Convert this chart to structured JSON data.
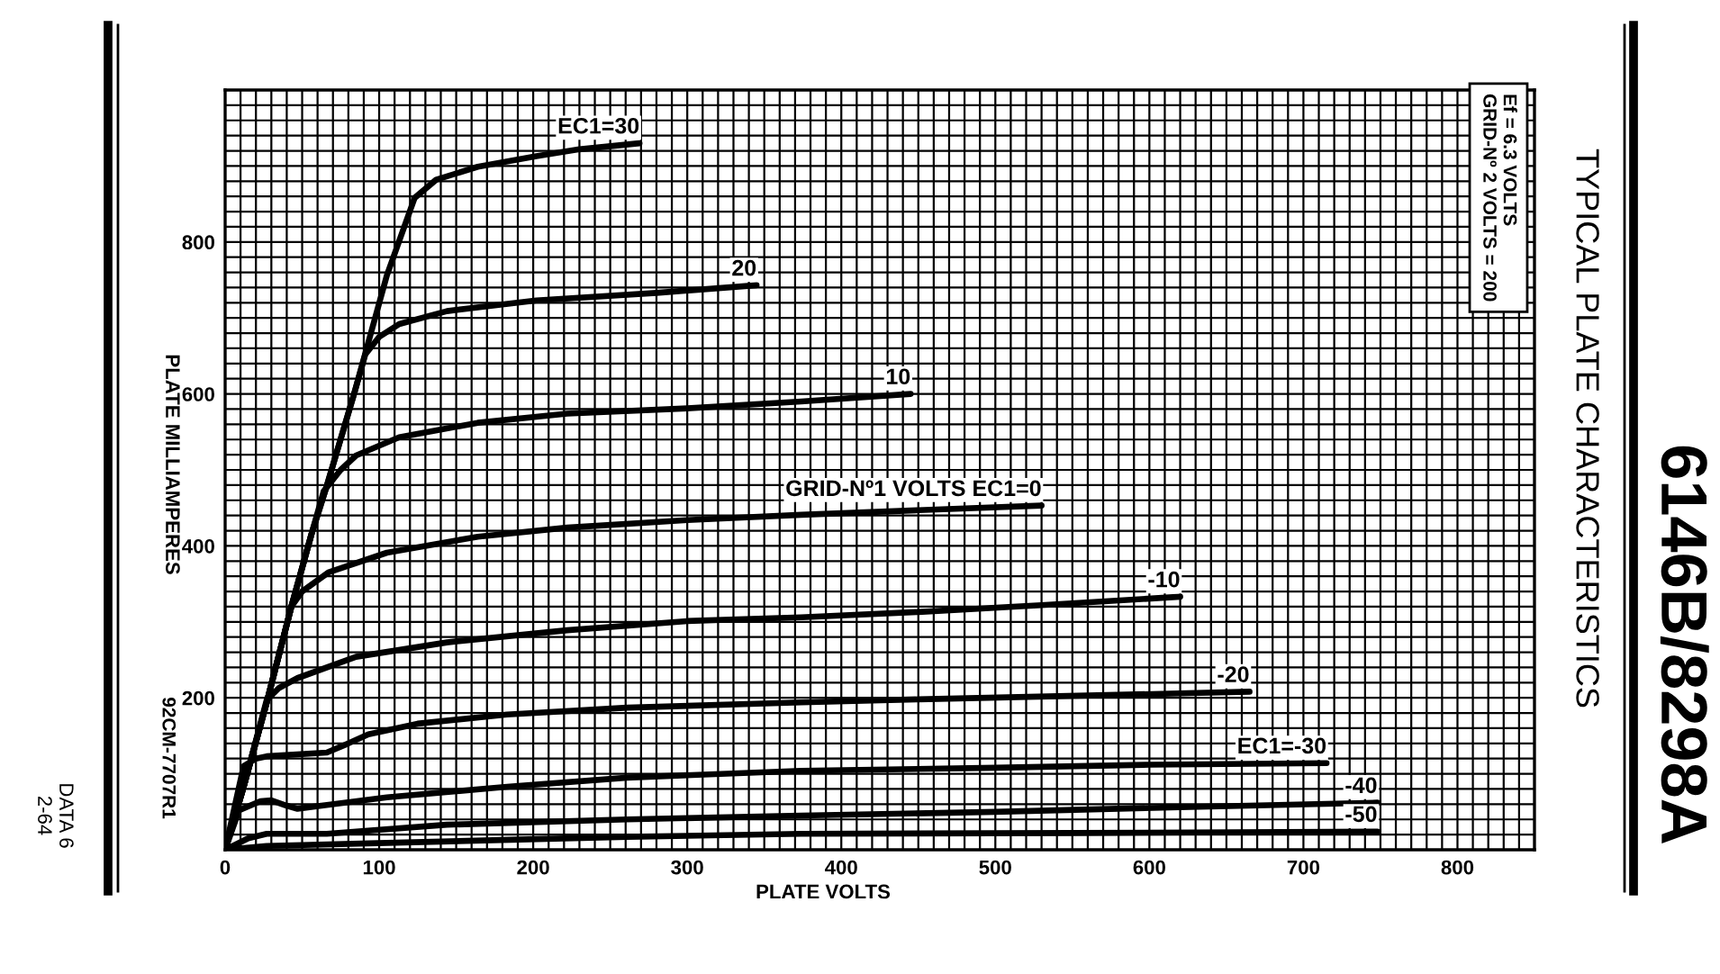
{
  "chart_data": {
    "type": "line",
    "title": "6146B/8298A",
    "subtitle": "TYPICAL PLATE CHARACTERISTICS",
    "xlabel": "PLATE VOLTS",
    "ylabel": "PLATE MILLIAMPERES",
    "annotations": [
      "Ef = 6.3 VOLTS\nGRID-Nº 2 VOLTS = 200",
      "92CM-7707R1",
      "DATA 6\n2-64"
    ],
    "xlim": [
      0,
      850
    ],
    "ylim": [
      0,
      1000
    ],
    "grid": true,
    "xticks": [
      0,
      {
        "value": 10,
        "label": null
      },
      {
        "value": 20,
        "label": null
      },
      {
        "value": 30,
        "label": null
      },
      {
        "value": 40,
        "label": null
      },
      {
        "value": 50,
        "label": null
      },
      {
        "value": 60,
        "label": null
      },
      {
        "value": 70,
        "label": null
      },
      {
        "value": 80,
        "label": null
      },
      {
        "value": 90,
        "label": null
      },
      100,
      {
        "value": 110,
        "label": null
      },
      {
        "value": 120,
        "label": null
      },
      {
        "value": 130,
        "label": null
      },
      {
        "value": 140,
        "label": null
      },
      {
        "value": 150,
        "label": null
      },
      {
        "value": 160,
        "label": null
      },
      {
        "value": 170,
        "label": null
      },
      {
        "value": 180,
        "label": null
      },
      {
        "value": 190,
        "label": null
      },
      200,
      {
        "value": 210,
        "label": null
      },
      {
        "value": 220,
        "label": null
      },
      {
        "value": 230,
        "label": null
      },
      {
        "value": 240,
        "label": null
      },
      {
        "value": 250,
        "label": null
      },
      {
        "value": 260,
        "label": null
      },
      {
        "value": 270,
        "label": null
      },
      {
        "value": 280,
        "label": null
      },
      {
        "value": 290,
        "label": null
      },
      300,
      {
        "value": 310,
        "label": null
      },
      {
        "value": 320,
        "label": null
      },
      {
        "value": 330,
        "label": null
      },
      {
        "value": 340,
        "label": null
      },
      {
        "value": 350,
        "label": null
      },
      {
        "value": 360,
        "label": null
      },
      {
        "value": 370,
        "label": null
      },
      {
        "value": 380,
        "label": null
      },
      {
        "value": 390,
        "label": null
      },
      400,
      {
        "value": 410,
        "label": null
      },
      {
        "value": 420,
        "label": null
      },
      {
        "value": 430,
        "label": null
      },
      {
        "value": 440,
        "label": null
      },
      {
        "value": 450,
        "label": null
      },
      {
        "value": 460,
        "label": null
      },
      {
        "value": 470,
        "label": null
      },
      {
        "value": 480,
        "label": null
      },
      {
        "value": 490,
        "label": null
      },
      500,
      {
        "value": 510,
        "label": null
      },
      {
        "value": 520,
        "label": null
      },
      {
        "value": 530,
        "label": null
      },
      {
        "value": 540,
        "label": null
      },
      {
        "value": 550,
        "label": null
      },
      {
        "value": 560,
        "label": null
      },
      {
        "value": 570,
        "label": null
      },
      {
        "value": 580,
        "label": null
      },
      {
        "value": 590,
        "label": null
      },
      600,
      {
        "value": 610,
        "label": null
      },
      {
        "value": 620,
        "label": null
      },
      {
        "value": 630,
        "label": null
      },
      {
        "value": 640,
        "label": null
      },
      {
        "value": 650,
        "label": null
      },
      {
        "value": 660,
        "label": null
      },
      {
        "value": 670,
        "label": null
      },
      {
        "value": 680,
        "label": null
      },
      {
        "value": 690,
        "label": null
      },
      700,
      {
        "value": 710,
        "label": null
      },
      {
        "value": 720,
        "label": null
      },
      {
        "value": 730,
        "label": null
      },
      {
        "value": 740,
        "label": null
      },
      {
        "value": 750,
        "label": null
      },
      {
        "value": 760,
        "label": null
      },
      {
        "value": 770,
        "label": null
      },
      {
        "value": 780,
        "label": null
      },
      {
        "value": 790,
        "label": null
      },
      800,
      {
        "value": 810,
        "label": null
      },
      {
        "value": 820,
        "label": null
      },
      {
        "value": 830,
        "label": null
      },
      {
        "value": 840,
        "label": null
      },
      {
        "value": 850,
        "label": null
      }
    ],
    "yticks": [
      {
        "value": 0,
        "label": null
      },
      {
        "value": 20,
        "label": null
      },
      {
        "value": 40,
        "label": null
      },
      {
        "value": 60,
        "label": null
      },
      {
        "value": 80,
        "label": null
      },
      {
        "value": 100,
        "label": null
      },
      {
        "value": 120,
        "label": null
      },
      {
        "value": 140,
        "label": null
      },
      {
        "value": 160,
        "label": null
      },
      {
        "value": 180,
        "label": null
      },
      200,
      {
        "value": 220,
        "label": null
      },
      {
        "value": 240,
        "label": null
      },
      {
        "value": 260,
        "label": null
      },
      {
        "value": 280,
        "label": null
      },
      {
        "value": 300,
        "label": null
      },
      {
        "value": 320,
        "label": null
      },
      {
        "value": 340,
        "label": null
      },
      {
        "value": 360,
        "label": null
      },
      {
        "value": 380,
        "label": null
      },
      400,
      {
        "value": 420,
        "label": null
      },
      {
        "value": 440,
        "label": null
      },
      {
        "value": 460,
        "label": null
      },
      {
        "value": 480,
        "label": null
      },
      {
        "value": 500,
        "label": null
      },
      {
        "value": 520,
        "label": null
      },
      {
        "value": 540,
        "label": null
      },
      {
        "value": 560,
        "label": null
      },
      {
        "value": 580,
        "label": null
      },
      600,
      {
        "value": 620,
        "label": null
      },
      {
        "value": 640,
        "label": null
      },
      {
        "value": 660,
        "label": null
      },
      {
        "value": 680,
        "label": null
      },
      {
        "value": 700,
        "label": null
      },
      {
        "value": 720,
        "label": null
      },
      {
        "value": 740,
        "label": null
      },
      {
        "value": 760,
        "label": null
      },
      {
        "value": 780,
        "label": null
      },
      800,
      {
        "value": 820,
        "label": null
      },
      {
        "value": 840,
        "label": null
      },
      {
        "value": 860,
        "label": null
      },
      {
        "value": 880,
        "label": null
      },
      {
        "value": 900,
        "label": null
      },
      {
        "value": 920,
        "label": null
      },
      {
        "value": 940,
        "label": null
      },
      {
        "value": 960,
        "label": null
      },
      {
        "value": 980,
        "label": null
      },
      {
        "value": 1000,
        "label": null
      }
    ],
    "series": [
      {
        "name": "EC1=30",
        "color": "#000000",
        "x": [
          0,
          12,
          27,
          43,
          56,
          66,
          84,
          105,
          123,
          137,
          164,
          202,
          230,
          269
        ],
        "values": [
          0,
          83,
          194,
          320,
          415,
          479,
          602,
          756,
          858,
          882,
          899,
          913,
          922,
          930
        ]
      },
      {
        "name": "20",
        "color": "#000000",
        "x": [
          0,
          12,
          27,
          43,
          56,
          66,
          84,
          91,
          100,
          113,
          144,
          202,
          280,
          345
        ],
        "values": [
          0,
          83,
          194,
          320,
          415,
          479,
          602,
          652,
          675,
          692,
          709,
          723,
          733,
          743
        ]
      },
      {
        "name": "10",
        "color": "#000000",
        "x": [
          0,
          12,
          27,
          43,
          56,
          64,
          75,
          85,
          113,
          164,
          222,
          300,
          374,
          445
        ],
        "values": [
          0,
          83,
          194,
          320,
          415,
          472,
          500,
          519,
          543,
          562,
          574,
          581,
          590,
          600
        ]
      },
      {
        "name": "GRID-Nº1 VOLTS EC1=0",
        "color": "#000000",
        "x": [
          0,
          12,
          27,
          43,
          50,
          67,
          105,
          164,
          222,
          300,
          374,
          450,
          530
        ],
        "values": [
          0,
          83,
          194,
          320,
          340,
          365,
          391,
          412,
          424,
          434,
          441,
          447,
          453
        ]
      },
      {
        "name": "-10",
        "color": "#000000",
        "x": [
          0,
          12,
          27,
          35,
          47,
          85,
          144,
          222,
          300,
          374,
          450,
          530,
          620
        ],
        "values": [
          0,
          83,
          197,
          213,
          226,
          254,
          273,
          289,
          301,
          306,
          313,
          322,
          333
        ]
      },
      {
        "name": "-20",
        "color": "#000000",
        "x": [
          0,
          6,
          12,
          20,
          27,
          66,
          80,
          93,
          125,
          183,
          261,
          374,
          450,
          560,
          665
        ],
        "values": [
          0,
          55,
          110,
          120,
          123,
          128,
          140,
          152,
          166,
          178,
          187,
          194,
          198,
          203,
          208
        ]
      },
      {
        "name": "EC1=-30",
        "color": "#000000",
        "x": [
          0,
          9,
          23,
          30,
          40,
          47,
          66,
          105,
          183,
          261,
          374,
          500,
          600,
          715
        ],
        "values": [
          0,
          52,
          64,
          65,
          58,
          54,
          59,
          69,
          83,
          95,
          104,
          108,
          112,
          114
        ]
      },
      {
        "name": "-40",
        "color": "#000000",
        "x": [
          0,
          15,
          27,
          66,
          144,
          261,
          374,
          500,
          620,
          748
        ],
        "values": [
          0,
          15,
          21,
          21,
          33,
          40,
          45,
          50,
          56,
          62
        ]
      },
      {
        "name": "-50",
        "color": "#000000",
        "x": [
          0,
          27,
          105,
          261,
          374,
          550,
          748
        ],
        "values": [
          0,
          5,
          9,
          17,
          21,
          22,
          24
        ]
      }
    ]
  }
}
